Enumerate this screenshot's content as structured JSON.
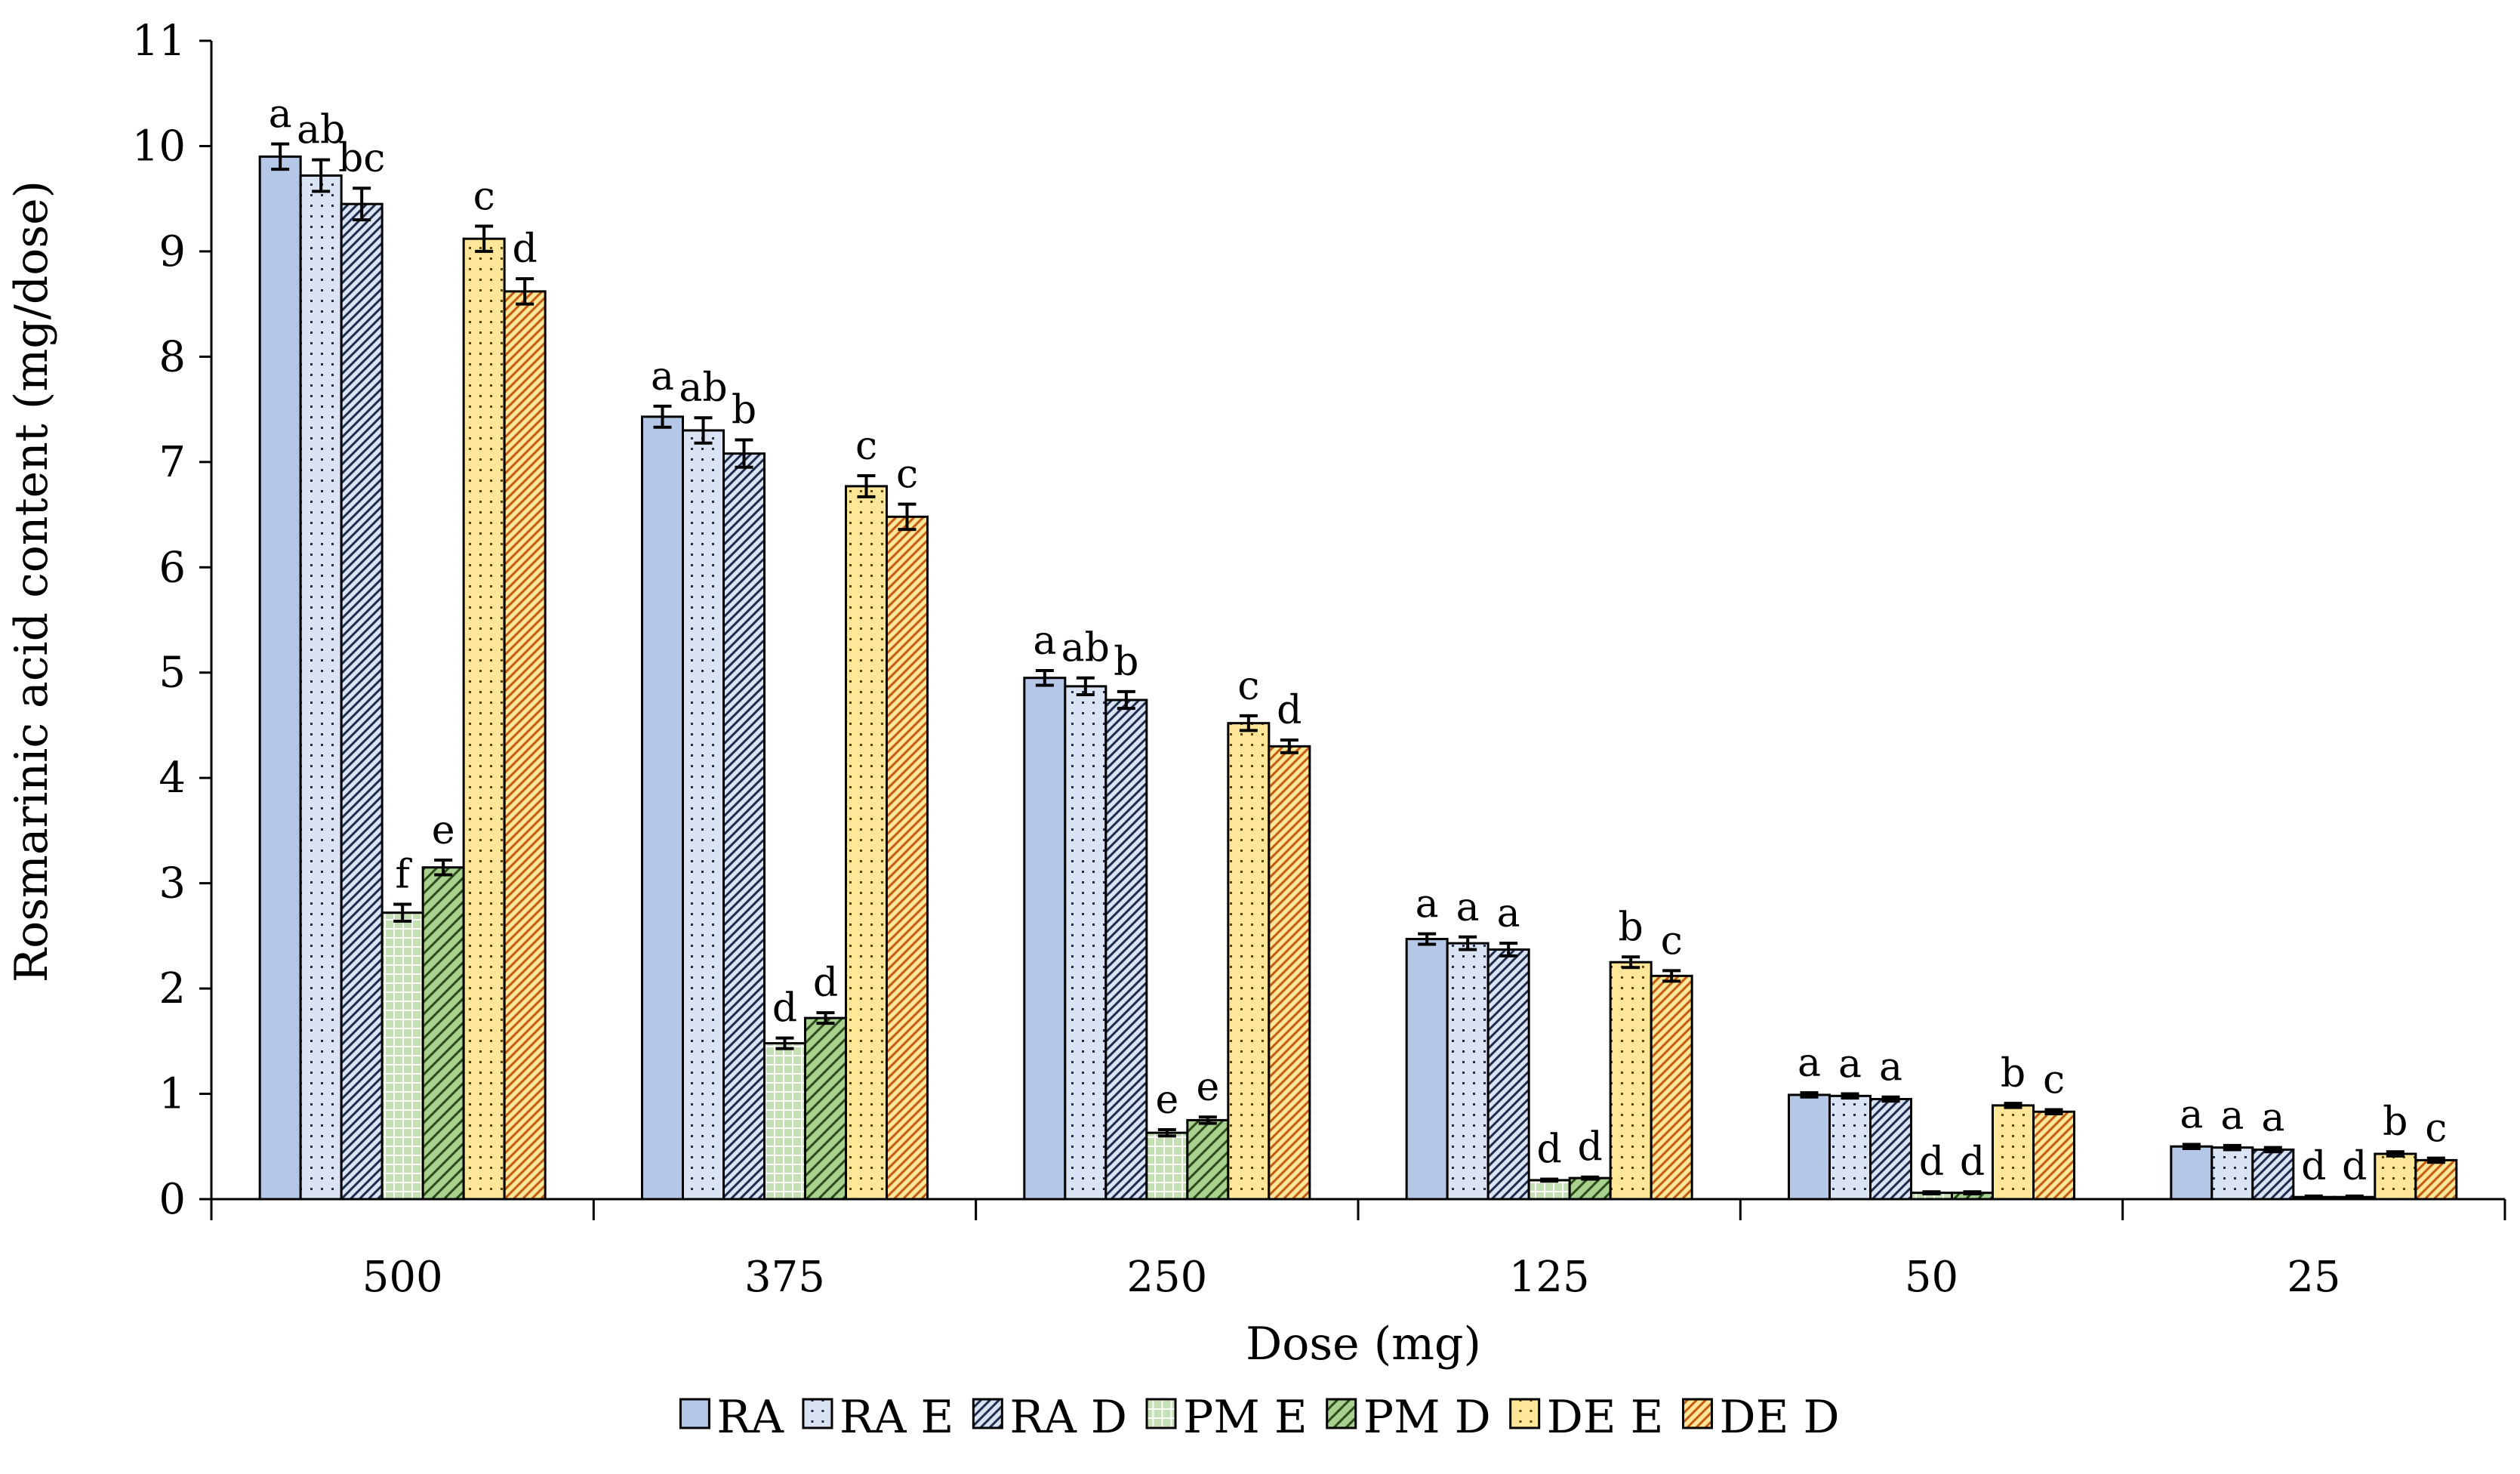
{
  "chart_data": {
    "type": "bar",
    "title": "",
    "xlabel": "Dose (mg)",
    "ylabel": "Rosmarinic acid content (mg/dose)",
    "ylim": [
      0,
      11
    ],
    "yticks": [
      0,
      1,
      2,
      3,
      4,
      5,
      6,
      7,
      8,
      9,
      10,
      11
    ],
    "categories": [
      "500",
      "375",
      "250",
      "125",
      "50",
      "25"
    ],
    "legend_position": "bottom",
    "series": [
      {
        "name": "RA",
        "color": "#b4c7e7",
        "pattern": "solid",
        "values": [
          9.9,
          7.43,
          4.95,
          2.47,
          0.99,
          0.5
        ],
        "errors": [
          0.12,
          0.1,
          0.07,
          0.05,
          0.02,
          0.02
        ],
        "labels": [
          "a",
          "a",
          "a",
          "a",
          "a",
          "a"
        ]
      },
      {
        "name": "RA E",
        "color": "#dae3f3",
        "pattern": "dots",
        "values": [
          9.72,
          7.3,
          4.87,
          2.43,
          0.98,
          0.49
        ],
        "errors": [
          0.15,
          0.12,
          0.08,
          0.06,
          0.02,
          0.02
        ],
        "labels": [
          "ab",
          "ab",
          "ab",
          "a",
          "a",
          "a"
        ]
      },
      {
        "name": "RA D",
        "color": "#dae3f3",
        "pattern": "diag-fine",
        "values": [
          9.45,
          7.08,
          4.74,
          2.37,
          0.95,
          0.47
        ],
        "errors": [
          0.15,
          0.13,
          0.08,
          0.06,
          0.02,
          0.02
        ],
        "labels": [
          "bc",
          "b",
          "b",
          "a",
          "a",
          "a"
        ]
      },
      {
        "name": "PM E",
        "color": "#c5e0b4",
        "pattern": "grid",
        "values": [
          2.72,
          1.48,
          0.63,
          0.18,
          0.06,
          0.02
        ],
        "errors": [
          0.08,
          0.05,
          0.03,
          0.01,
          0.01,
          0.01
        ],
        "labels": [
          "f",
          "d",
          "e",
          "d",
          "d",
          "d"
        ]
      },
      {
        "name": "PM D",
        "color": "#a9d18e",
        "pattern": "diag-wide",
        "values": [
          3.15,
          1.72,
          0.75,
          0.2,
          0.06,
          0.02
        ],
        "errors": [
          0.07,
          0.05,
          0.03,
          0.01,
          0.01,
          0.01
        ],
        "labels": [
          "e",
          "d",
          "e",
          "d",
          "d",
          "d"
        ]
      },
      {
        "name": "DE E",
        "color": "#ffe699",
        "pattern": "dots",
        "values": [
          9.12,
          6.77,
          4.52,
          2.25,
          0.89,
          0.43
        ],
        "errors": [
          0.12,
          0.1,
          0.07,
          0.05,
          0.02,
          0.02
        ],
        "labels": [
          "c",
          "c",
          "c",
          "b",
          "b",
          "b"
        ]
      },
      {
        "name": "DE D",
        "color": "#f4b183",
        "pattern": "diag-fine",
        "values": [
          8.62,
          6.48,
          4.3,
          2.12,
          0.83,
          0.37
        ],
        "errors": [
          0.12,
          0.12,
          0.06,
          0.05,
          0.02,
          0.02
        ],
        "labels": [
          "d",
          "c",
          "d",
          "c",
          "c",
          "c"
        ]
      }
    ]
  }
}
